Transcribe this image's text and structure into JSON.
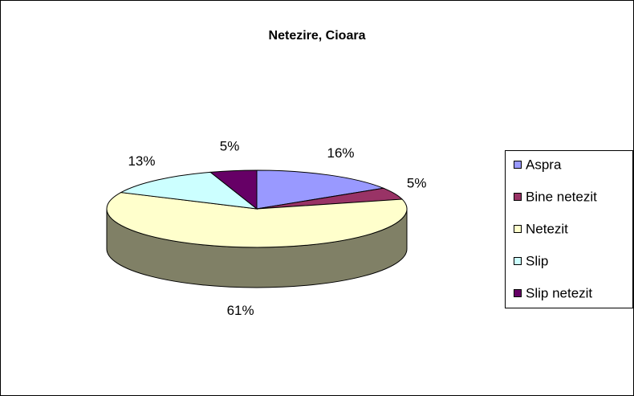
{
  "chart_data": {
    "type": "pie",
    "three_d": true,
    "title": "Netezire, Cioara",
    "categories": [
      "Aspra",
      "Bine netezit",
      "Netezit",
      "Slip",
      "Slip netezit"
    ],
    "values": [
      16,
      5,
      61,
      13,
      5
    ],
    "value_labels": [
      "16%",
      "5%",
      "61%",
      "13%",
      "5%"
    ],
    "colors": [
      "#9999ff",
      "#993366",
      "#ffffcc",
      "#ccffff",
      "#660066"
    ],
    "legend": "right"
  }
}
